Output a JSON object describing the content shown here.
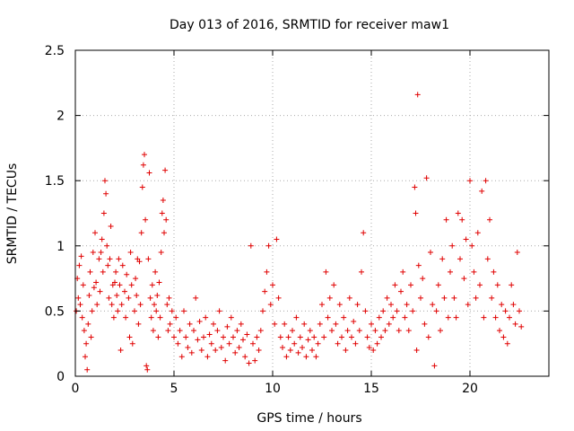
{
  "chart_data": {
    "type": "scatter",
    "title": "Day 013 of 2016, SRMTID for receiver maw1",
    "xlabel": "GPS time / hours",
    "ylabel": "SRMTID / TECUs",
    "xlim": [
      0,
      24
    ],
    "ylim": [
      0,
      2.5
    ],
    "x_ticks": [
      0,
      5,
      10,
      15,
      20
    ],
    "x_tick_labels": [
      "0",
      "5",
      "10",
      "15",
      "20"
    ],
    "y_ticks": [
      0,
      0.5,
      1,
      1.5,
      2,
      2.5
    ],
    "y_tick_labels": [
      "0",
      "0.5",
      "1",
      "1.5",
      "2",
      "2.5"
    ],
    "grid": true,
    "marker": "+",
    "color": "#e00000",
    "series": [
      {
        "name": "SRMTID",
        "points": [
          [
            0.05,
            0.5
          ],
          [
            0.1,
            0.75
          ],
          [
            0.15,
            0.6
          ],
          [
            0.2,
            0.85
          ],
          [
            0.25,
            0.55
          ],
          [
            0.3,
            0.92
          ],
          [
            0.35,
            0.45
          ],
          [
            0.4,
            0.7
          ],
          [
            0.45,
            0.35
          ],
          [
            0.5,
            0.15
          ],
          [
            0.55,
            0.25
          ],
          [
            0.6,
            0.05
          ],
          [
            0.65,
            0.4
          ],
          [
            0.7,
            0.62
          ],
          [
            0.75,
            0.8
          ],
          [
            0.8,
            0.3
          ],
          [
            0.85,
            0.5
          ],
          [
            0.9,
            0.95
          ],
          [
            0.95,
            0.68
          ],
          [
            1.0,
            1.1
          ],
          [
            1.05,
            0.72
          ],
          [
            1.1,
            0.55
          ],
          [
            1.2,
            0.9
          ],
          [
            1.25,
            0.65
          ],
          [
            1.3,
            0.95
          ],
          [
            1.35,
            1.05
          ],
          [
            1.4,
            0.8
          ],
          [
            1.45,
            1.25
          ],
          [
            1.5,
            1.5
          ],
          [
            1.55,
            1.4
          ],
          [
            1.6,
            1.0
          ],
          [
            1.65,
            0.85
          ],
          [
            1.7,
            0.6
          ],
          [
            1.75,
            0.9
          ],
          [
            1.8,
            1.15
          ],
          [
            1.85,
            0.55
          ],
          [
            1.9,
            0.7
          ],
          [
            1.95,
            0.45
          ],
          [
            2.0,
            0.72
          ],
          [
            2.05,
            0.8
          ],
          [
            2.1,
            0.62
          ],
          [
            2.15,
            0.5
          ],
          [
            2.2,
            0.9
          ],
          [
            2.25,
            0.7
          ],
          [
            2.3,
            0.2
          ],
          [
            2.35,
            0.55
          ],
          [
            2.4,
            0.85
          ],
          [
            2.5,
            0.65
          ],
          [
            2.55,
            0.45
          ],
          [
            2.6,
            0.78
          ],
          [
            2.7,
            0.6
          ],
          [
            2.75,
            0.3
          ],
          [
            2.8,
            0.95
          ],
          [
            2.85,
            0.7
          ],
          [
            2.9,
            0.25
          ],
          [
            3.0,
            0.5
          ],
          [
            3.05,
            0.75
          ],
          [
            3.1,
            0.62
          ],
          [
            3.15,
            0.9
          ],
          [
            3.2,
            0.4
          ],
          [
            3.25,
            0.88
          ],
          [
            3.3,
            0.55
          ],
          [
            3.35,
            1.1
          ],
          [
            3.4,
            1.45
          ],
          [
            3.45,
            1.62
          ],
          [
            3.5,
            1.7
          ],
          [
            3.55,
            1.2
          ],
          [
            3.6,
            0.08
          ],
          [
            3.65,
            0.05
          ],
          [
            3.7,
            0.9
          ],
          [
            3.75,
            1.56
          ],
          [
            3.8,
            0.6
          ],
          [
            3.85,
            0.45
          ],
          [
            3.9,
            0.7
          ],
          [
            3.95,
            0.35
          ],
          [
            4.0,
            0.55
          ],
          [
            4.05,
            0.8
          ],
          [
            4.1,
            0.5
          ],
          [
            4.15,
            0.62
          ],
          [
            4.2,
            0.3
          ],
          [
            4.25,
            0.72
          ],
          [
            4.3,
            0.45
          ],
          [
            4.35,
            0.95
          ],
          [
            4.4,
            1.25
          ],
          [
            4.45,
            1.35
          ],
          [
            4.5,
            1.1
          ],
          [
            4.55,
            1.58
          ],
          [
            4.6,
            1.2
          ],
          [
            4.65,
            0.55
          ],
          [
            4.7,
            0.35
          ],
          [
            4.75,
            0.6
          ],
          [
            4.8,
            0.4
          ],
          [
            4.9,
            0.5
          ],
          [
            5.0,
            0.3
          ],
          [
            5.1,
            0.45
          ],
          [
            5.2,
            0.25
          ],
          [
            5.3,
            0.35
          ],
          [
            5.4,
            0.15
          ],
          [
            5.5,
            0.5
          ],
          [
            5.6,
            0.3
          ],
          [
            5.7,
            0.22
          ],
          [
            5.8,
            0.4
          ],
          [
            5.9,
            0.18
          ],
          [
            6.0,
            0.35
          ],
          [
            6.1,
            0.6
          ],
          [
            6.2,
            0.28
          ],
          [
            6.3,
            0.42
          ],
          [
            6.4,
            0.2
          ],
          [
            6.5,
            0.3
          ],
          [
            6.6,
            0.45
          ],
          [
            6.7,
            0.15
          ],
          [
            6.8,
            0.32
          ],
          [
            6.9,
            0.25
          ],
          [
            7.0,
            0.4
          ],
          [
            7.1,
            0.2
          ],
          [
            7.2,
            0.35
          ],
          [
            7.3,
            0.5
          ],
          [
            7.4,
            0.22
          ],
          [
            7.5,
            0.3
          ],
          [
            7.6,
            0.12
          ],
          [
            7.7,
            0.38
          ],
          [
            7.8,
            0.25
          ],
          [
            7.9,
            0.45
          ],
          [
            8.0,
            0.3
          ],
          [
            8.1,
            0.18
          ],
          [
            8.2,
            0.35
          ],
          [
            8.3,
            0.22
          ],
          [
            8.4,
            0.4
          ],
          [
            8.5,
            0.28
          ],
          [
            8.6,
            0.15
          ],
          [
            8.7,
            0.32
          ],
          [
            8.8,
            0.1
          ],
          [
            8.9,
            1.0
          ],
          [
            9.0,
            0.25
          ],
          [
            9.1,
            0.12
          ],
          [
            9.2,
            0.3
          ],
          [
            9.3,
            0.2
          ],
          [
            9.4,
            0.35
          ],
          [
            9.5,
            0.5
          ],
          [
            9.6,
            0.65
          ],
          [
            9.7,
            0.8
          ],
          [
            9.8,
            1.0
          ],
          [
            9.9,
            0.55
          ],
          [
            10.0,
            0.7
          ],
          [
            10.1,
            0.4
          ],
          [
            10.2,
            1.05
          ],
          [
            10.3,
            0.6
          ],
          [
            10.4,
            0.3
          ],
          [
            10.5,
            0.22
          ],
          [
            10.6,
            0.4
          ],
          [
            10.7,
            0.15
          ],
          [
            10.8,
            0.3
          ],
          [
            10.9,
            0.2
          ],
          [
            11.0,
            0.35
          ],
          [
            11.1,
            0.25
          ],
          [
            11.2,
            0.45
          ],
          [
            11.3,
            0.18
          ],
          [
            11.4,
            0.3
          ],
          [
            11.5,
            0.22
          ],
          [
            11.6,
            0.4
          ],
          [
            11.7,
            0.15
          ],
          [
            11.8,
            0.28
          ],
          [
            11.9,
            0.35
          ],
          [
            12.0,
            0.2
          ],
          [
            12.1,
            0.3
          ],
          [
            12.2,
            0.15
          ],
          [
            12.3,
            0.25
          ],
          [
            12.4,
            0.4
          ],
          [
            12.5,
            0.55
          ],
          [
            12.6,
            0.3
          ],
          [
            12.7,
            0.8
          ],
          [
            12.8,
            0.45
          ],
          [
            12.9,
            0.6
          ],
          [
            13.0,
            0.35
          ],
          [
            13.1,
            0.7
          ],
          [
            13.2,
            0.4
          ],
          [
            13.3,
            0.25
          ],
          [
            13.4,
            0.55
          ],
          [
            13.5,
            0.3
          ],
          [
            13.6,
            0.45
          ],
          [
            13.7,
            0.2
          ],
          [
            13.8,
            0.35
          ],
          [
            13.9,
            0.6
          ],
          [
            14.0,
            0.3
          ],
          [
            14.1,
            0.42
          ],
          [
            14.2,
            0.25
          ],
          [
            14.3,
            0.55
          ],
          [
            14.4,
            0.35
          ],
          [
            14.5,
            0.8
          ],
          [
            14.6,
            1.1
          ],
          [
            14.7,
            0.5
          ],
          [
            14.8,
            0.3
          ],
          [
            14.9,
            0.22
          ],
          [
            15.0,
            0.4
          ],
          [
            15.1,
            0.2
          ],
          [
            15.2,
            0.35
          ],
          [
            15.3,
            0.25
          ],
          [
            15.4,
            0.45
          ],
          [
            15.5,
            0.3
          ],
          [
            15.6,
            0.5
          ],
          [
            15.7,
            0.35
          ],
          [
            15.8,
            0.6
          ],
          [
            15.9,
            0.4
          ],
          [
            16.0,
            0.55
          ],
          [
            16.1,
            0.45
          ],
          [
            16.2,
            0.7
          ],
          [
            16.3,
            0.5
          ],
          [
            16.4,
            0.35
          ],
          [
            16.5,
            0.65
          ],
          [
            16.6,
            0.8
          ],
          [
            16.7,
            0.45
          ],
          [
            16.8,
            0.55
          ],
          [
            16.9,
            0.35
          ],
          [
            17.0,
            0.7
          ],
          [
            17.1,
            0.5
          ],
          [
            17.2,
            1.45
          ],
          [
            17.25,
            1.25
          ],
          [
            17.3,
            0.2
          ],
          [
            17.35,
            2.16
          ],
          [
            17.4,
            0.85
          ],
          [
            17.5,
            0.6
          ],
          [
            17.6,
            0.75
          ],
          [
            17.7,
            0.4
          ],
          [
            17.8,
            1.52
          ],
          [
            17.9,
            0.3
          ],
          [
            18.0,
            0.95
          ],
          [
            18.1,
            0.55
          ],
          [
            18.2,
            0.08
          ],
          [
            18.3,
            0.5
          ],
          [
            18.4,
            0.7
          ],
          [
            18.5,
            0.35
          ],
          [
            18.6,
            0.9
          ],
          [
            18.7,
            0.6
          ],
          [
            18.8,
            1.2
          ],
          [
            18.9,
            0.45
          ],
          [
            19.0,
            0.8
          ],
          [
            19.1,
            1.0
          ],
          [
            19.2,
            0.6
          ],
          [
            19.3,
            0.45
          ],
          [
            19.4,
            1.25
          ],
          [
            19.5,
            0.9
          ],
          [
            19.6,
            1.2
          ],
          [
            19.7,
            0.75
          ],
          [
            19.8,
            1.05
          ],
          [
            19.9,
            0.55
          ],
          [
            20.0,
            1.5
          ],
          [
            20.1,
            1.0
          ],
          [
            20.2,
            0.8
          ],
          [
            20.3,
            0.6
          ],
          [
            20.4,
            1.1
          ],
          [
            20.5,
            0.7
          ],
          [
            20.6,
            1.42
          ],
          [
            20.7,
            0.45
          ],
          [
            20.8,
            1.5
          ],
          [
            20.9,
            0.9
          ],
          [
            21.0,
            1.2
          ],
          [
            21.1,
            0.6
          ],
          [
            21.2,
            0.8
          ],
          [
            21.3,
            0.45
          ],
          [
            21.4,
            0.7
          ],
          [
            21.5,
            0.35
          ],
          [
            21.6,
            0.55
          ],
          [
            21.7,
            0.3
          ],
          [
            21.8,
            0.5
          ],
          [
            21.9,
            0.25
          ],
          [
            22.0,
            0.45
          ],
          [
            22.1,
            0.7
          ],
          [
            22.2,
            0.55
          ],
          [
            22.3,
            0.4
          ],
          [
            22.4,
            0.95
          ],
          [
            22.5,
            0.5
          ],
          [
            22.6,
            0.38
          ]
        ]
      }
    ]
  }
}
